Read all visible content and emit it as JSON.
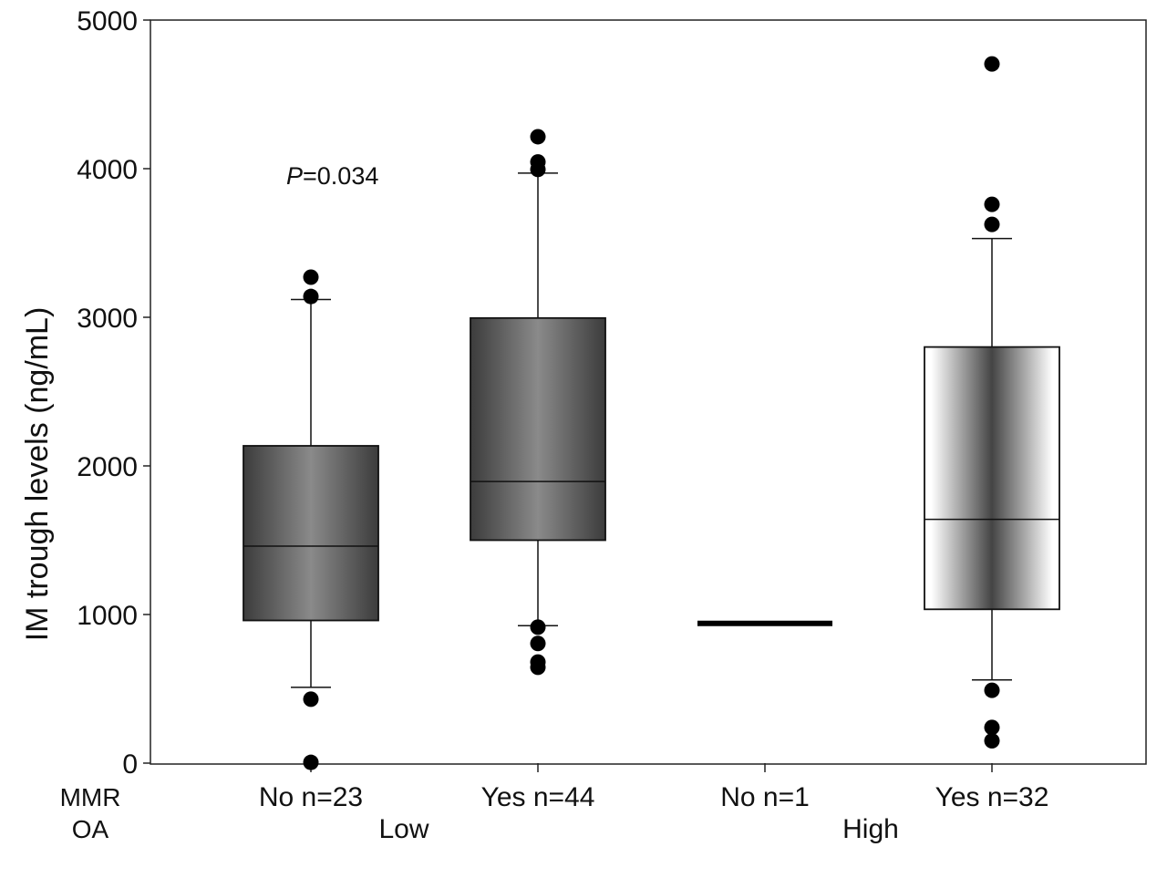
{
  "chart_data": {
    "type": "box",
    "title": "",
    "ylabel": "IM trough levels (ng/mL)",
    "ylim": [
      0,
      5000
    ],
    "yticks": [
      0,
      1000,
      2000,
      3000,
      4000,
      5000
    ],
    "grid": false,
    "row_labels": [
      "MMR",
      "OA"
    ],
    "group_labels": [
      {
        "label": "Low",
        "categories": [
          0,
          1
        ]
      },
      {
        "label": "High",
        "categories": [
          2,
          3
        ]
      }
    ],
    "annotation": {
      "prefix": "P",
      "text": "=0.034"
    },
    "boxes": [
      {
        "label": "No n=23",
        "q1": 960,
        "median": 1460,
        "q3": 2135,
        "whisker_low": 510,
        "whisker_high": 3120,
        "outliers": [
          3270,
          3140,
          430,
          5
        ],
        "fill": "dark"
      },
      {
        "label": "Yes n=44",
        "q1": 1500,
        "median": 1895,
        "q3": 2995,
        "whisker_low": 925,
        "whisker_high": 3970,
        "outliers": [
          4215,
          4045,
          3995,
          915,
          805,
          680,
          645
        ],
        "fill": "dark"
      },
      {
        "label": "No n=1",
        "single_value": 940,
        "outliers": [],
        "fill": "none"
      },
      {
        "label": "Yes n=32",
        "q1": 1035,
        "median": 1640,
        "q3": 2800,
        "whisker_low": 560,
        "whisker_high": 3530,
        "outliers": [
          4705,
          3760,
          3625,
          490,
          240,
          150
        ],
        "fill": "light"
      }
    ]
  }
}
